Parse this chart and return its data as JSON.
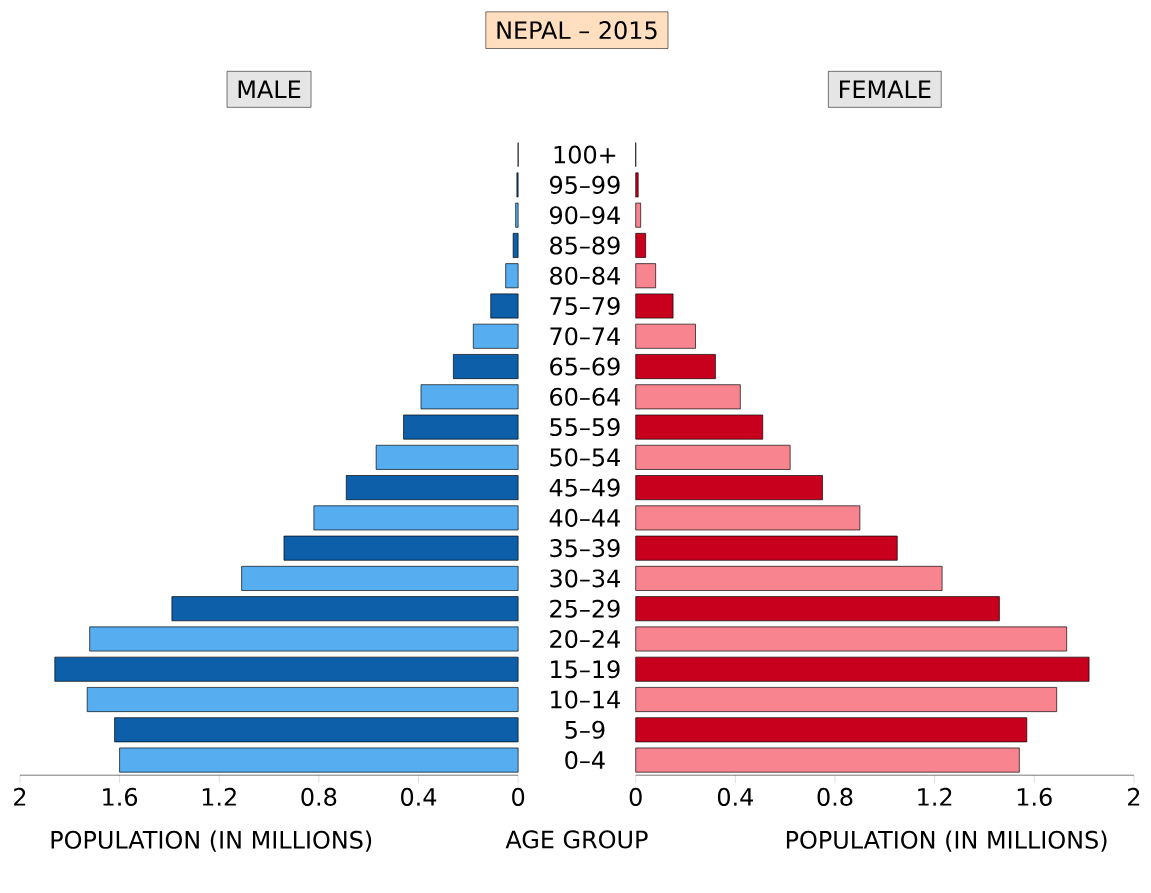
{
  "chart_data": [
    {
      "type": "bar",
      "orientation": "horizontal",
      "title": "MALE",
      "xlabel": "POPULATION (IN MILLIONS)",
      "ylabel": "AGE GROUP",
      "annotations": [
        "NEPAL – 2015"
      ],
      "categories": [
        "100+",
        "95–99",
        "90–94",
        "85–89",
        "80–84",
        "75–79",
        "70–74",
        "65–69",
        "60–64",
        "55–59",
        "50–54",
        "45–49",
        "40–44",
        "35–39",
        "30–34",
        "25–29",
        "20–24",
        "15–19",
        "10–14",
        "5–9",
        "0–4"
      ],
      "values": [
        0,
        0.005,
        0.01,
        0.02,
        0.05,
        0.11,
        0.18,
        0.26,
        0.39,
        0.46,
        0.57,
        0.69,
        0.82,
        0.94,
        1.11,
        1.39,
        1.72,
        1.86,
        1.73,
        1.62,
        1.6
      ],
      "colors": [
        "#56aef0",
        "#0c5fa8",
        "#56aef0",
        "#0c5fa8",
        "#56aef0",
        "#0c5fa8",
        "#56aef0",
        "#0c5fa8",
        "#56aef0",
        "#0c5fa8",
        "#56aef0",
        "#0c5fa8",
        "#56aef0",
        "#0c5fa8",
        "#56aef0",
        "#0c5fa8",
        "#56aef0",
        "#0c5fa8",
        "#56aef0",
        "#0c5fa8",
        "#56aef0"
      ],
      "xlim": [
        2,
        0
      ],
      "xticks": [
        2,
        1.6,
        1.2,
        0.8,
        0.4,
        0
      ]
    },
    {
      "type": "bar",
      "orientation": "horizontal",
      "title": "FEMALE",
      "xlabel": "POPULATION (IN MILLIONS)",
      "tick_labels": "x",
      "categories": [
        null,
        null,
        null,
        null,
        null,
        null,
        null,
        null,
        null,
        null,
        null,
        null,
        null,
        null,
        null,
        null,
        null,
        null,
        null,
        null,
        null
      ],
      "values": [
        0,
        0.01,
        0.02,
        0.04,
        0.08,
        0.15,
        0.24,
        0.32,
        0.42,
        0.51,
        0.62,
        0.75,
        0.9,
        1.05,
        1.23,
        1.46,
        1.73,
        1.82,
        1.69,
        1.57,
        1.54
      ],
      "colors": [
        "#f7848f",
        "#c8001e",
        "#f7848f",
        "#c8001e",
        "#f7848f",
        "#c8001e",
        "#f7848f",
        "#c8001e",
        "#f7848f",
        "#c8001e",
        "#f7848f",
        "#c8001e",
        "#f7848f",
        "#c8001e",
        "#f7848f",
        "#c8001e",
        "#f7848f",
        "#c8001e",
        "#f7848f",
        "#c8001e",
        "#f7848f"
      ],
      "xlim": [
        0,
        2
      ],
      "xticks": [
        0,
        0.4,
        0.8,
        1.2,
        1.6,
        2
      ]
    }
  ]
}
